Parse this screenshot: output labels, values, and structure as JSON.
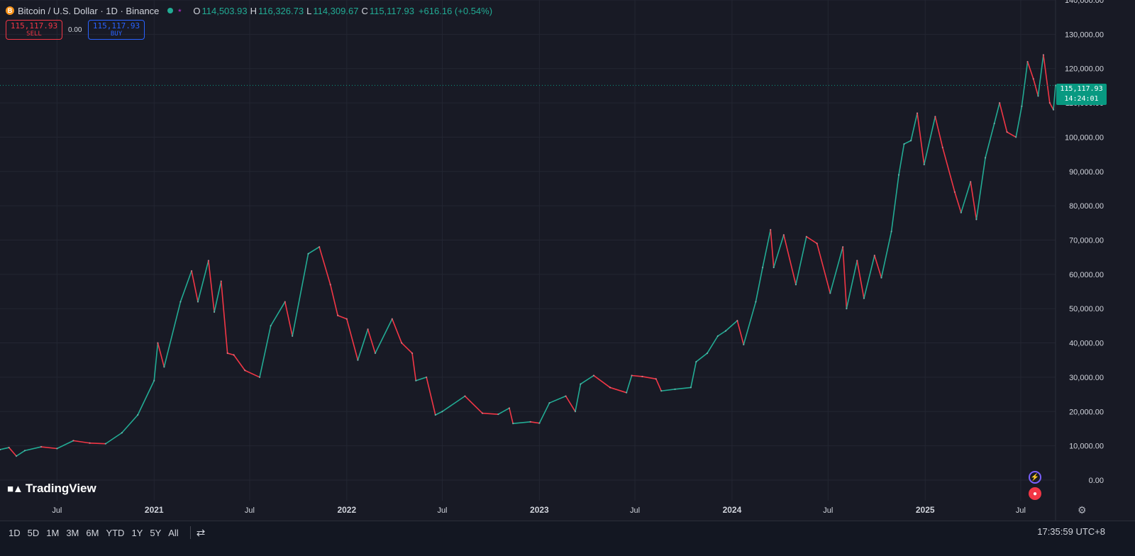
{
  "header": {
    "coin_icon": "B",
    "symbol_title": "Bitcoin / U.S. Dollar · 1D · Binance",
    "ohlc": {
      "o_label": "O",
      "o_value": "114,503.93",
      "h_label": "H",
      "h_value": "116,326.73",
      "l_label": "L",
      "l_value": "114,309.67",
      "c_label": "C",
      "c_value": "115,117.93",
      "change": "+616.16 (+0.54%)"
    }
  },
  "trade": {
    "sell_price": "115,117.93",
    "sell_label": "SELL",
    "spread": "0.00",
    "buy_price": "115,117.93",
    "buy_label": "BUY"
  },
  "logo": {
    "text": "TradingView"
  },
  "price_badge": {
    "price": "115,117.93",
    "countdown": "14:24:01"
  },
  "bottom_bar": {
    "ranges": [
      "1D",
      "5D",
      "1M",
      "3M",
      "6M",
      "YTD",
      "1Y",
      "5Y",
      "All"
    ],
    "clock": "17:35:59 UTC+8"
  },
  "colors": {
    "up": "#22ab94",
    "down": "#f23645",
    "background": "#181a25",
    "grid": "#232632",
    "accent_badge": "#089981"
  },
  "icons": [
    "bitcoin-icon",
    "status-dot-icon",
    "share-icon",
    "tradingview-logo-icon",
    "bolt-icon",
    "us-flag-icon",
    "settings-icon",
    "compare-icon"
  ],
  "chart_data": {
    "type": "line",
    "title": "",
    "xlabel": "",
    "ylabel": "",
    "x_range": [
      "2020-03-15",
      "2025-09-05"
    ],
    "ylim": [
      -6000,
      140000
    ],
    "y_ticks": [
      0,
      10000,
      20000,
      30000,
      40000,
      50000,
      60000,
      70000,
      80000,
      90000,
      100000,
      110000,
      120000,
      130000,
      140000
    ],
    "y_tick_labels": [
      "0.00",
      "10,000.00",
      "20,000.00",
      "30,000.00",
      "40,000.00",
      "50,000.00",
      "60,000.00",
      "70,000.00",
      "80,000.00",
      "90,000.00",
      "100,000.00",
      "110,000.00",
      "120,000.00",
      "130,000.00",
      "140,000.00"
    ],
    "x_ticks": [
      {
        "date": "2020-07-01",
        "label": "Jul"
      },
      {
        "date": "2021-01-01",
        "label": "2021"
      },
      {
        "date": "2021-07-01",
        "label": "Jul"
      },
      {
        "date": "2022-01-01",
        "label": "2022"
      },
      {
        "date": "2022-07-01",
        "label": "Jul"
      },
      {
        "date": "2023-01-01",
        "label": "2023"
      },
      {
        "date": "2023-07-01",
        "label": "Jul"
      },
      {
        "date": "2024-01-01",
        "label": "2024"
      },
      {
        "date": "2024-07-01",
        "label": "Jul"
      },
      {
        "date": "2025-01-01",
        "label": "2025"
      },
      {
        "date": "2025-07-01",
        "label": "Jul"
      }
    ],
    "last_price": 115117.93,
    "grid": true,
    "series": [
      {
        "values": [
          [
            "2020-03-15",
            8900
          ],
          [
            "2020-04-01",
            9500
          ],
          [
            "2020-04-15",
            7000
          ],
          [
            "2020-05-01",
            8600
          ],
          [
            "2020-06-01",
            9700
          ],
          [
            "2020-07-01",
            9200
          ],
          [
            "2020-08-01",
            11500
          ],
          [
            "2020-09-01",
            10800
          ],
          [
            "2020-10-01",
            10600
          ],
          [
            "2020-11-01",
            13800
          ],
          [
            "2020-12-01",
            19000
          ],
          [
            "2021-01-01",
            29000
          ],
          [
            "2021-01-08",
            40000
          ],
          [
            "2021-01-20",
            33000
          ],
          [
            "2021-02-20",
            52000
          ],
          [
            "2021-03-13",
            61000
          ],
          [
            "2021-03-25",
            52000
          ],
          [
            "2021-04-14",
            64000
          ],
          [
            "2021-04-25",
            49000
          ],
          [
            "2021-05-08",
            58000
          ],
          [
            "2021-05-20",
            37000
          ],
          [
            "2021-06-01",
            36500
          ],
          [
            "2021-06-22",
            32000
          ],
          [
            "2021-07-20",
            30000
          ],
          [
            "2021-08-10",
            45000
          ],
          [
            "2021-09-06",
            52000
          ],
          [
            "2021-09-20",
            42000
          ],
          [
            "2021-10-20",
            66000
          ],
          [
            "2021-11-10",
            68000
          ],
          [
            "2021-12-01",
            57000
          ],
          [
            "2021-12-15",
            48000
          ],
          [
            "2022-01-01",
            47000
          ],
          [
            "2022-01-22",
            35000
          ],
          [
            "2022-02-10",
            44000
          ],
          [
            "2022-02-24",
            37000
          ],
          [
            "2022-03-28",
            47000
          ],
          [
            "2022-04-15",
            40000
          ],
          [
            "2022-05-05",
            37000
          ],
          [
            "2022-05-12",
            29000
          ],
          [
            "2022-06-01",
            30000
          ],
          [
            "2022-06-18",
            19000
          ],
          [
            "2022-07-01",
            20000
          ],
          [
            "2022-08-13",
            24500
          ],
          [
            "2022-09-15",
            19500
          ],
          [
            "2022-10-15",
            19200
          ],
          [
            "2022-11-05",
            21000
          ],
          [
            "2022-11-12",
            16500
          ],
          [
            "2022-12-15",
            17000
          ],
          [
            "2023-01-01",
            16600
          ],
          [
            "2023-01-20",
            22500
          ],
          [
            "2023-02-20",
            24500
          ],
          [
            "2023-03-10",
            20000
          ],
          [
            "2023-03-20",
            28000
          ],
          [
            "2023-04-14",
            30500
          ],
          [
            "2023-05-15",
            27000
          ],
          [
            "2023-06-15",
            25500
          ],
          [
            "2023-06-25",
            30500
          ],
          [
            "2023-07-15",
            30200
          ],
          [
            "2023-08-10",
            29500
          ],
          [
            "2023-08-20",
            26000
          ],
          [
            "2023-09-15",
            26500
          ],
          [
            "2023-10-15",
            27000
          ],
          [
            "2023-10-25",
            34500
          ],
          [
            "2023-11-15",
            37000
          ],
          [
            "2023-12-05",
            42000
          ],
          [
            "2023-12-20",
            43500
          ],
          [
            "2024-01-11",
            46500
          ],
          [
            "2024-01-23",
            39500
          ],
          [
            "2024-02-15",
            52000
          ],
          [
            "2024-02-28",
            62000
          ],
          [
            "2024-03-14",
            73000
          ],
          [
            "2024-03-20",
            62000
          ],
          [
            "2024-04-08",
            71500
          ],
          [
            "2024-05-01",
            57000
          ],
          [
            "2024-05-21",
            71000
          ],
          [
            "2024-06-10",
            69000
          ],
          [
            "2024-07-05",
            54500
          ],
          [
            "2024-07-29",
            68000
          ],
          [
            "2024-08-05",
            50000
          ],
          [
            "2024-08-25",
            64000
          ],
          [
            "2024-09-07",
            53000
          ],
          [
            "2024-09-27",
            65500
          ],
          [
            "2024-10-10",
            59000
          ],
          [
            "2024-10-29",
            72500
          ],
          [
            "2024-11-12",
            89000
          ],
          [
            "2024-11-22",
            98000
          ],
          [
            "2024-12-05",
            99000
          ],
          [
            "2024-12-17",
            107000
          ],
          [
            "2024-12-30",
            92000
          ],
          [
            "2025-01-20",
            106000
          ],
          [
            "2025-02-03",
            97000
          ],
          [
            "2025-02-26",
            84000
          ],
          [
            "2025-03-10",
            78000
          ],
          [
            "2025-03-28",
            87000
          ],
          [
            "2025-04-08",
            76000
          ],
          [
            "2025-04-25",
            94000
          ],
          [
            "2025-05-12",
            104000
          ],
          [
            "2025-05-22",
            110000
          ],
          [
            "2025-06-05",
            101500
          ],
          [
            "2025-06-22",
            100000
          ],
          [
            "2025-07-03",
            109000
          ],
          [
            "2025-07-14",
            122000
          ],
          [
            "2025-07-25",
            117000
          ],
          [
            "2025-08-03",
            112000
          ],
          [
            "2025-08-13",
            124000
          ],
          [
            "2025-08-25",
            110000
          ],
          [
            "2025-09-01",
            108000
          ],
          [
            "2025-09-05",
            115117.93
          ]
        ]
      }
    ]
  }
}
